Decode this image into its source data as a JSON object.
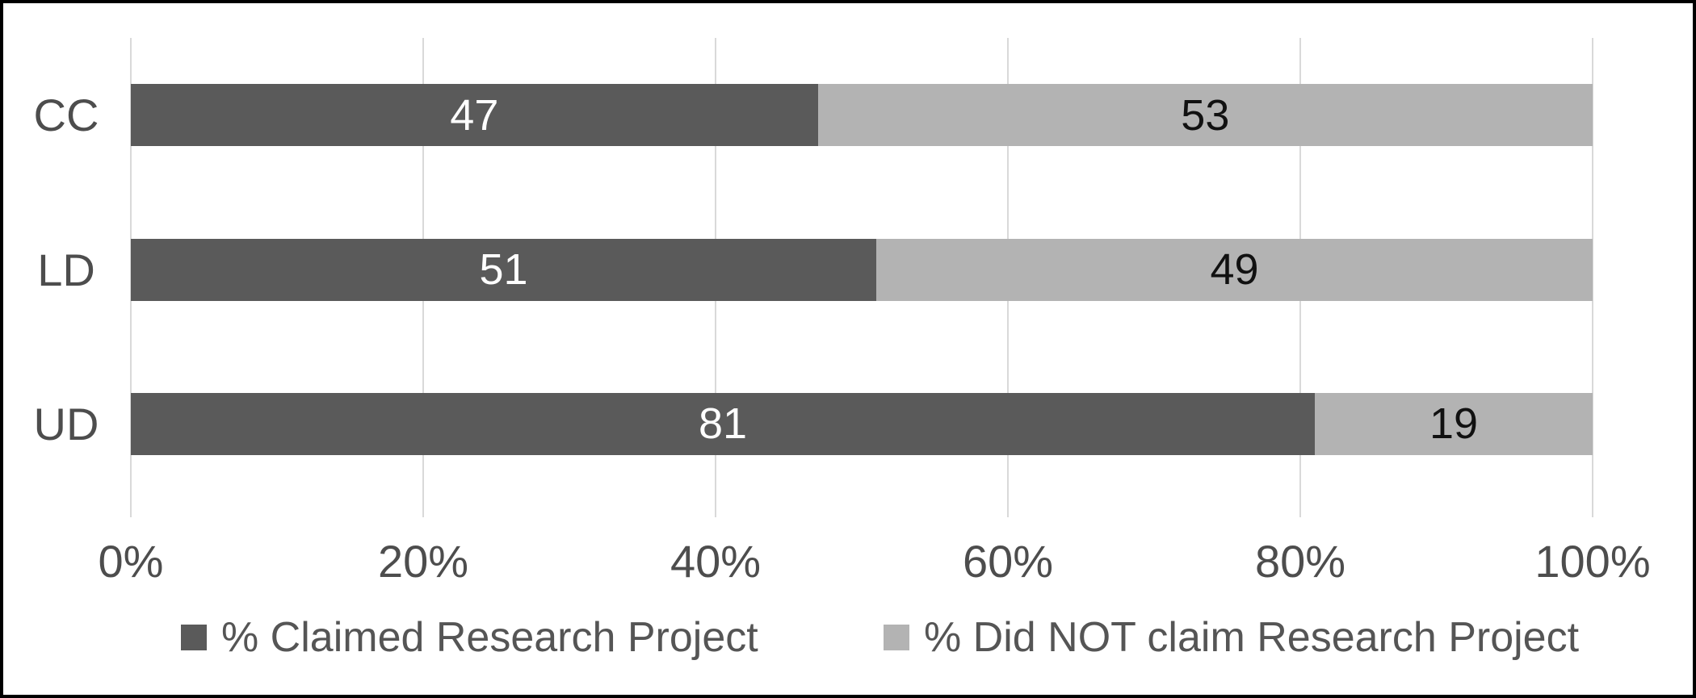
{
  "figure": {
    "background": "#ffffff",
    "frame_color": "#000000"
  },
  "chart_data": {
    "type": "bar",
    "variant": "horizontal-100pct-stacked",
    "title": "",
    "xlabel": "",
    "ylabel": "",
    "categories": [
      "CC",
      "LD",
      "UD"
    ],
    "series": [
      {
        "name": "% Claimed Research Project",
        "color": "#5a5a5a",
        "label_color": "#ffffff",
        "values": [
          47,
          51,
          81
        ]
      },
      {
        "name": "% Did NOT claim Research Project",
        "color": "#b3b3b3",
        "label_color": "#111111",
        "values": [
          53,
          49,
          19
        ]
      }
    ],
    "x_axis": {
      "min": 0,
      "max": 100,
      "tick_values": [
        0,
        20,
        40,
        60,
        80,
        100
      ],
      "tick_labels": [
        "0%",
        "20%",
        "40%",
        "60%",
        "80%",
        "100%"
      ]
    },
    "grid": true,
    "gridline_color": "#d9d9d9",
    "legend_position": "bottom",
    "axis_text_color": "#4d4d4d"
  }
}
